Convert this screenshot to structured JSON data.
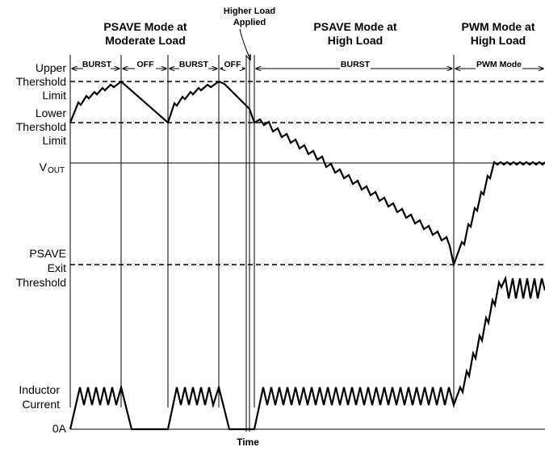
{
  "headers": {
    "psave_moderate_line1": "PSAVE  Mode at",
    "psave_moderate_line2": "Moderate Load",
    "higher_load_line1": "Higher Load",
    "higher_load_line2": "Applied",
    "psave_high_line1": "PSAVE  Mode at",
    "psave_high_line2": "High Load",
    "pwm_high_line1": "PWM Mode at",
    "pwm_high_line2": "High Load"
  },
  "segments": {
    "burst1": "BURST",
    "off1": "OFF",
    "burst2": "BURST",
    "off2": "OFF",
    "burst3": "BURST",
    "pwm": "PWM Mode"
  },
  "labels": {
    "upper_line1": "Upper",
    "upper_line2": "Thershold",
    "upper_line3": "Limit",
    "lower_line1": "Lower",
    "lower_line2": "Thershold",
    "lower_line3": "Limit",
    "vout_main": "V",
    "vout_sub": "OUT",
    "psave_line1": "PSAVE",
    "psave_line2": "Exit",
    "psave_line3": "Threshold",
    "inductor_line1": "Inductor",
    "inductor_line2": "Current",
    "zero_amp": "0A",
    "time": "Time"
  }
}
